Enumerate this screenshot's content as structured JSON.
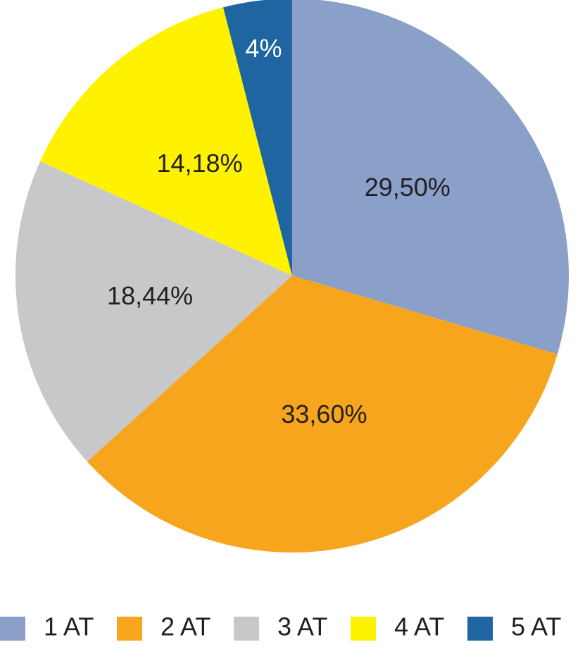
{
  "chart_data": {
    "type": "pie",
    "title": "",
    "slices": [
      {
        "label": "1 AT",
        "value": 29.5,
        "display": "29,50%",
        "color": "#8aa0c8",
        "label_color": "#231f20"
      },
      {
        "label": "2 AT",
        "value": 33.6,
        "display": "33,60%",
        "color": "#f7a51d",
        "label_color": "#231f20"
      },
      {
        "label": "3 AT",
        "value": 18.44,
        "display": "18,44%",
        "color": "#c7c8ca",
        "label_color": "#231f20"
      },
      {
        "label": "4 AT",
        "value": 14.18,
        "display": "14,18%",
        "color": "#fff200",
        "label_color": "#231f20"
      },
      {
        "label": "5 AT",
        "value": 4,
        "display": "4%",
        "color": "#1f65a1",
        "label_color": "#ffffff"
      }
    ],
    "start_angle": "12 o'clock",
    "direction": "clockwise",
    "legend": {
      "position": "bottom",
      "entries": [
        "1 AT",
        "2 AT",
        "3 AT",
        "4 AT",
        "5 AT"
      ]
    }
  }
}
